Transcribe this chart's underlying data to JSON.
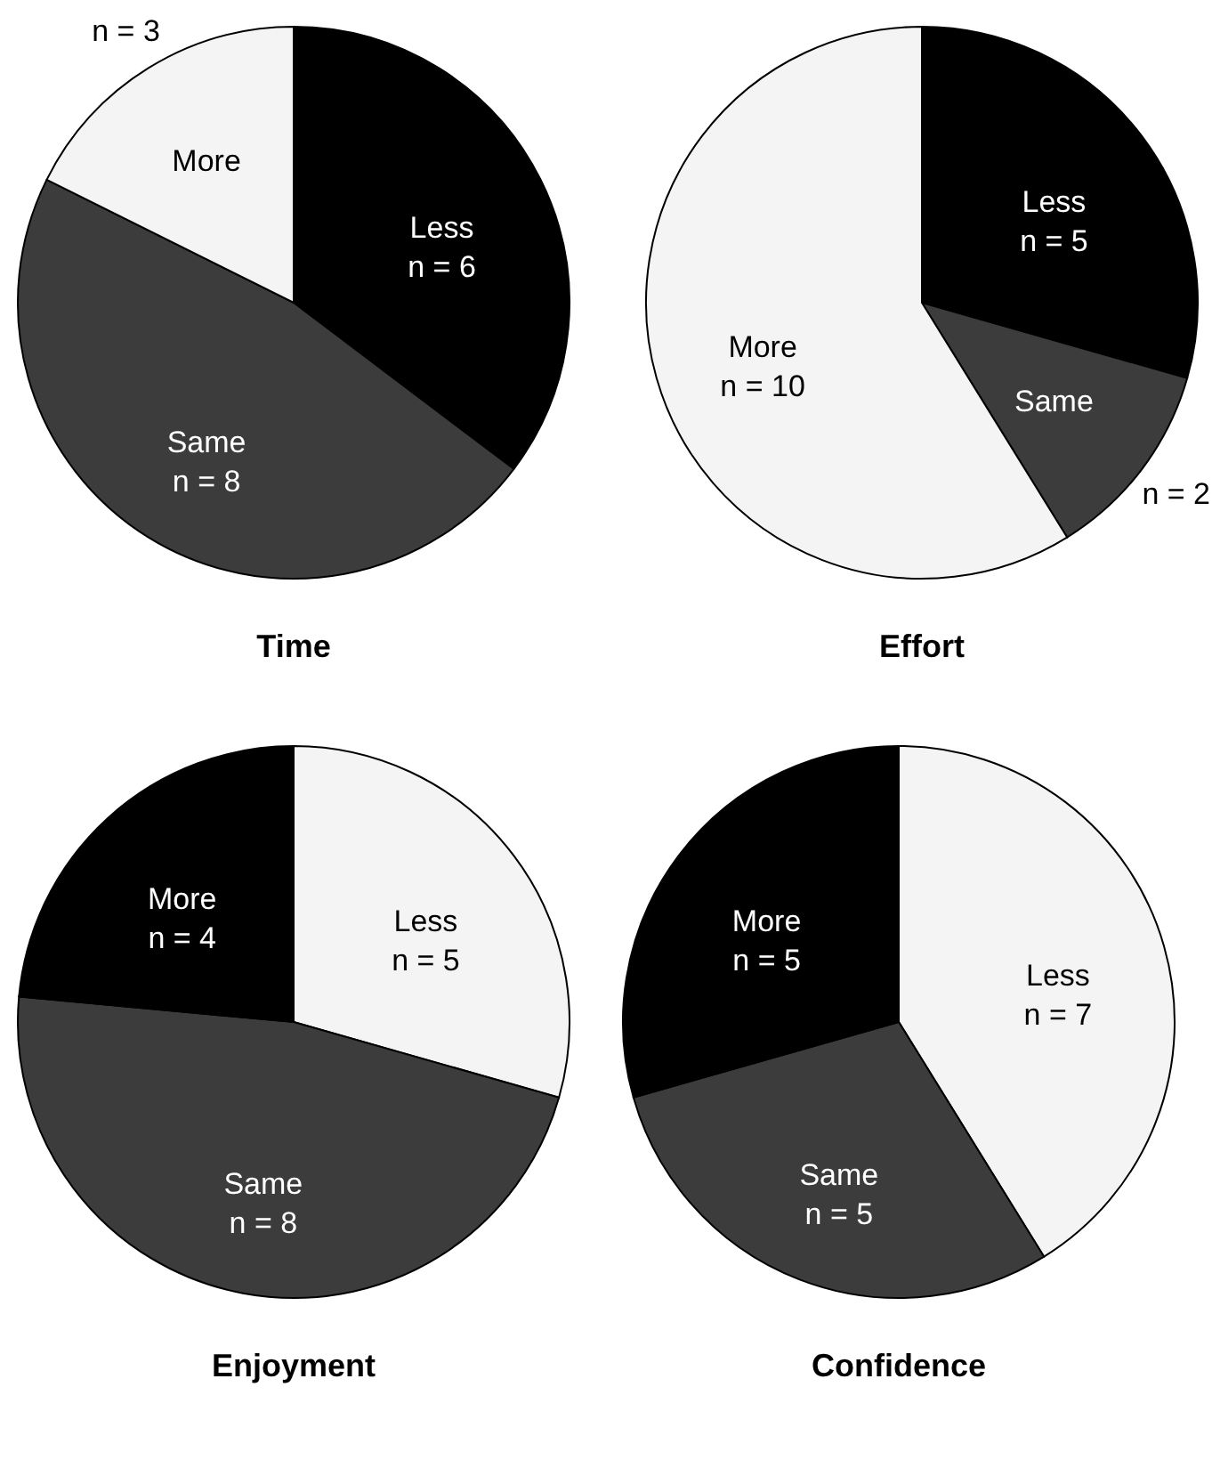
{
  "chart_data": [
    {
      "type": "pie",
      "title": "Time",
      "categories": [
        "Less",
        "Same",
        "More"
      ],
      "values": [
        6,
        8,
        3
      ],
      "colors": [
        "#000000",
        "#3c3c3c",
        "#f4f4f4"
      ],
      "value_labels": [
        "n = 6",
        "n = 8",
        "n = 3"
      ]
    },
    {
      "type": "pie",
      "title": "Effort",
      "categories": [
        "Less",
        "Same",
        "More"
      ],
      "values": [
        5,
        2,
        10
      ],
      "colors": [
        "#000000",
        "#3c3c3c",
        "#f4f4f4"
      ],
      "value_labels": [
        "n = 5",
        "n = 2",
        "n = 10"
      ]
    },
    {
      "type": "pie",
      "title": "Enjoyment",
      "categories": [
        "Less",
        "Same",
        "More"
      ],
      "values": [
        5,
        8,
        4
      ],
      "colors": [
        "#f4f4f4",
        "#3c3c3c",
        "#000000"
      ],
      "value_labels": [
        "n = 5",
        "n = 8",
        "n = 4"
      ]
    },
    {
      "type": "pie",
      "title": "Confidence",
      "categories": [
        "Less",
        "Same",
        "More"
      ],
      "values": [
        7,
        5,
        5
      ],
      "colors": [
        "#f4f4f4",
        "#3c3c3c",
        "#000000"
      ],
      "value_labels": [
        "n = 7",
        "n = 5",
        "n = 5"
      ]
    }
  ]
}
